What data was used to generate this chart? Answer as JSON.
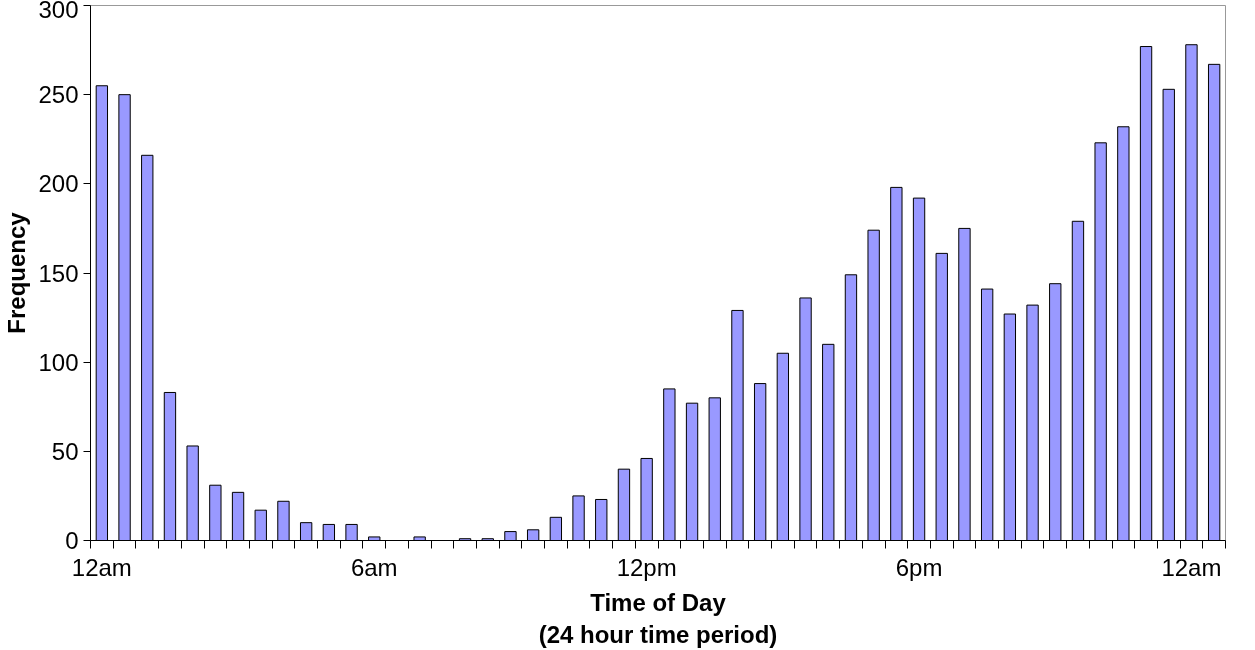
{
  "chart_data": {
    "type": "bar",
    "xlabel": "Time of Day\n(24 hour time period)",
    "ylabel": "Frequency",
    "categories": [
      "12am",
      null,
      null,
      null,
      null,
      null,
      null,
      null,
      null,
      null,
      null,
      null,
      "6am",
      null,
      null,
      null,
      null,
      null,
      null,
      null,
      null,
      null,
      null,
      null,
      "12pm",
      null,
      null,
      null,
      null,
      null,
      null,
      null,
      null,
      null,
      null,
      null,
      "6pm",
      null,
      null,
      null,
      null,
      null,
      null,
      null,
      null,
      null,
      null,
      null,
      "12am",
      null
    ],
    "values": [
      255,
      250,
      216,
      83,
      53,
      31,
      27,
      17,
      22,
      10,
      9,
      9,
      2,
      null,
      2,
      null,
      1,
      1,
      5,
      6,
      13,
      25,
      23,
      40,
      46,
      85,
      77,
      80,
      129,
      88,
      105,
      136,
      110,
      149,
      174,
      198,
      192,
      161,
      175,
      141,
      127,
      132,
      144,
      179,
      223,
      232,
      277,
      253,
      278,
      267
    ],
    "color": "#9999ff",
    "ylim": [
      0,
      300
    ],
    "yticks": [
      0,
      50,
      100,
      150,
      200,
      250,
      300
    ],
    "grid": false
  }
}
